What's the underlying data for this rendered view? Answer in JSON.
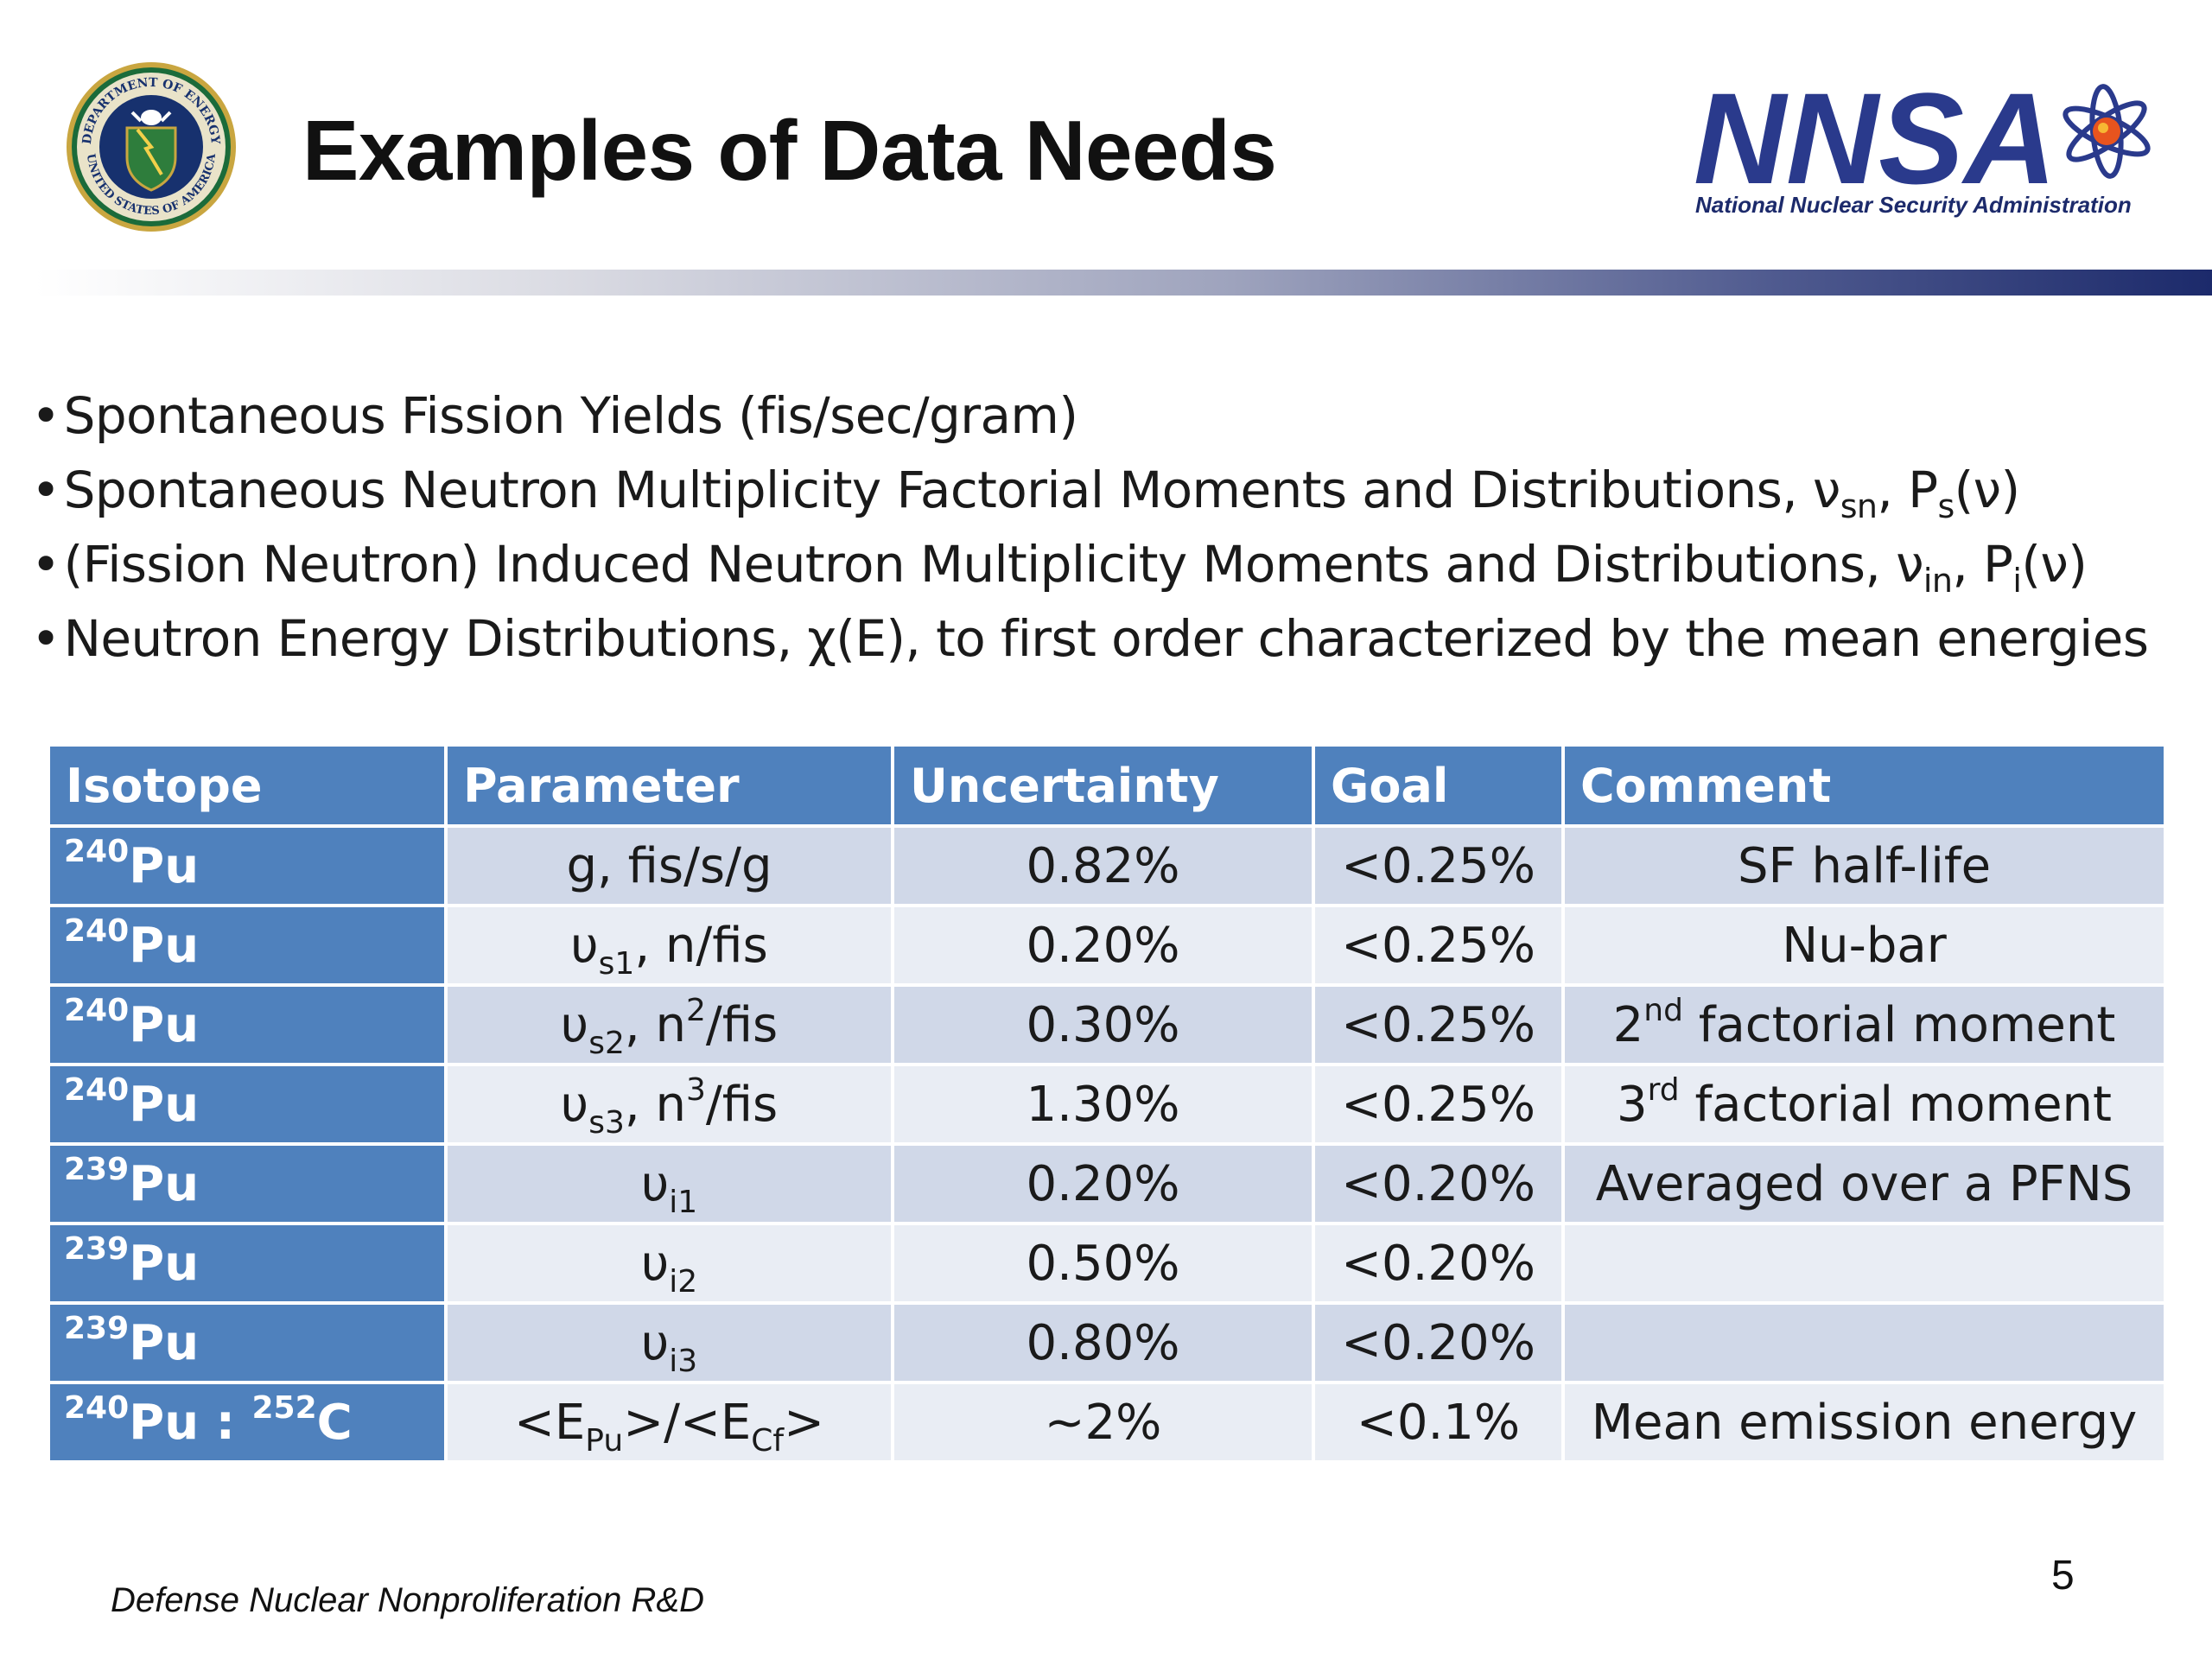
{
  "header": {
    "title": "Examples of Data Needs",
    "doe_seal_text": "DEPARTMENT OF ENERGY · UNITED STATES OF AMERICA",
    "nnsa_logo_text": "NNSA",
    "nnsa_tagline": "National Nuclear Security Administration"
  },
  "colors": {
    "table_header": "#4f81bd",
    "row_dark": "#d0d8e8",
    "row_light": "#e9edf4",
    "nnsa_navy": "#1c2a6b"
  },
  "bullets": [
    {
      "bullet": "•",
      "text": "Spontaneous Fission Yields (fis/sec/gram)"
    },
    {
      "bullet": "•",
      "text": "Spontaneous Neutron Multiplicity Factorial Moments and Distributions, ν",
      "sub1": "sn",
      "mid": ", P",
      "sub2": "s",
      "tail": "(ν)"
    },
    {
      "bullet": "•",
      "text": "(Fission Neutron) Induced Neutron Multiplicity Moments and Distributions, ν",
      "sub1": "in",
      "mid": ", P",
      "sub2": "i",
      "tail": "(ν)"
    },
    {
      "bullet": "•",
      "text": "Neutron Energy Distributions, χ(E), to first order characterized by the mean energies"
    }
  ],
  "table": {
    "headers": [
      "Isotope",
      "Parameter",
      "Uncertainty",
      "Goal",
      "Comment"
    ],
    "rows": [
      {
        "isotope": {
          "sup1": "240",
          "el1": "Pu"
        },
        "param": {
          "a": "g, fis/s/g"
        },
        "uncertainty": "0.82%",
        "goal": "<0.25%",
        "comment": {
          "a": "SF half-life"
        }
      },
      {
        "isotope": {
          "sup1": "240",
          "el1": "Pu"
        },
        "param": {
          "a": "υ",
          "sub": "s1",
          "b": ", n/fis"
        },
        "uncertainty": "0.20%",
        "goal": "<0.25%",
        "comment": {
          "a": "Nu-bar"
        }
      },
      {
        "isotope": {
          "sup1": "240",
          "el1": "Pu"
        },
        "param": {
          "a": "υ",
          "sub": "s2",
          "b": ", n",
          "sup": "2",
          "c": "/fis"
        },
        "uncertainty": "0.30%",
        "goal": "<0.25%",
        "comment": {
          "a": "2",
          "sup": "nd",
          "b": " factorial moment"
        }
      },
      {
        "isotope": {
          "sup1": "240",
          "el1": "Pu"
        },
        "param": {
          "a": "υ",
          "sub": "s3",
          "b": ", n",
          "sup": "3",
          "c": "/fis"
        },
        "uncertainty": "1.30%",
        "goal": "<0.25%",
        "comment": {
          "a": "3",
          "sup": "rd",
          "b": " factorial moment"
        }
      },
      {
        "isotope": {
          "sup1": "239",
          "el1": "Pu"
        },
        "param": {
          "a": "υ",
          "sub": "i1"
        },
        "uncertainty": "0.20%",
        "goal": "<0.20%",
        "comment": {
          "a": "Averaged over a PFNS"
        }
      },
      {
        "isotope": {
          "sup1": "239",
          "el1": "Pu"
        },
        "param": {
          "a": "υ",
          "sub": "i2"
        },
        "uncertainty": "0.50%",
        "goal": "<0.20%",
        "comment": {
          "a": ""
        }
      },
      {
        "isotope": {
          "sup1": "239",
          "el1": "Pu"
        },
        "param": {
          "a": "υ",
          "sub": "i3"
        },
        "uncertainty": "0.80%",
        "goal": "<0.20%",
        "comment": {
          "a": ""
        }
      },
      {
        "isotope": {
          "sup1": "240",
          "el1": "Pu",
          "sep": " : ",
          "sup2": "252",
          "el2": "C"
        },
        "param": {
          "a": "<E",
          "sub": "Pu",
          "b": ">/<E",
          "sub2": "Cf",
          "c": ">"
        },
        "uncertainty": "~2%",
        "goal": "<0.1%",
        "comment": {
          "a": "Mean emission energy"
        }
      }
    ]
  },
  "footer": {
    "text": "Defense Nuclear Nonproliferation R&D",
    "page": "5"
  }
}
